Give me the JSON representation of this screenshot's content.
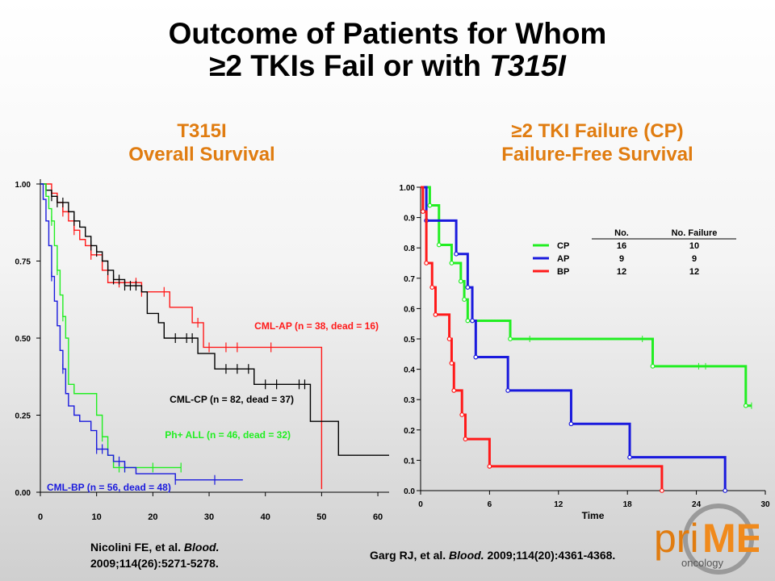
{
  "title_line1": "Outcome of Patients for Whom",
  "title_line2_main": "≥2 TKIs Fail or with ",
  "title_line2_italic": "T315I",
  "left_panel": {
    "heading_line1": "T315I",
    "heading_line2": "Overall Survival"
  },
  "right_panel": {
    "heading_line1": "≥2 TKI Failure (CP)",
    "heading_line2": "Failure-Free Survival"
  },
  "citations": {
    "left_prefix": "Nicolini FE, et al. ",
    "left_journal": "Blood.",
    "left_rest": "2009;114(26):5271-5278.",
    "right_prefix": "Garg RJ, et al. ",
    "right_journal": "Blood.",
    "right_rest": " 2009;114(20):4361-4368."
  },
  "logo": {
    "text_pri": "pri",
    "text_me": "ME",
    "text_onc": "oncology"
  },
  "colors": {
    "accent": "#e07c10",
    "red": "#ff1a1a",
    "green": "#22ee22",
    "blue": "#1a1add",
    "black": "#000000"
  },
  "chart_data": [
    {
      "type": "line",
      "subtype": "kaplan-meier",
      "title": "T315I Overall Survival",
      "xlim": [
        0,
        62
      ],
      "ylim": [
        0,
        1
      ],
      "x_ticks": [
        0,
        10,
        20,
        30,
        40,
        50,
        60
      ],
      "y_ticks": [
        "0.00",
        "0.25",
        "0.50",
        "0.75",
        "1.00"
      ],
      "series": [
        {
          "name": "CML-AP (n = 38, dead = 16)",
          "color": "#ff1a1a",
          "x": [
            0,
            2,
            3,
            4,
            5,
            6,
            7,
            8,
            9,
            11,
            12,
            18,
            23,
            27,
            29,
            50,
            50
          ],
          "y": [
            1.0,
            0.97,
            0.94,
            0.91,
            0.88,
            0.85,
            0.82,
            0.8,
            0.77,
            0.72,
            0.68,
            0.65,
            0.6,
            0.55,
            0.47,
            0.47,
            0.01
          ],
          "censored_x": [
            4,
            6,
            9,
            14,
            17,
            18,
            22,
            28,
            30,
            33,
            35,
            41
          ]
        },
        {
          "name": "CML-CP (n = 82, dead = 37)",
          "color": "#000000",
          "x": [
            0,
            1,
            2,
            3,
            5,
            6,
            7,
            8,
            9,
            10,
            11,
            12,
            13,
            15,
            18,
            19,
            21,
            22,
            26,
            28,
            31,
            38,
            48,
            53,
            62
          ],
          "y": [
            1.0,
            0.98,
            0.96,
            0.94,
            0.91,
            0.88,
            0.86,
            0.83,
            0.8,
            0.78,
            0.75,
            0.72,
            0.69,
            0.67,
            0.65,
            0.58,
            0.55,
            0.5,
            0.5,
            0.45,
            0.4,
            0.35,
            0.23,
            0.12,
            0.12
          ],
          "censored_x": [
            1,
            2,
            3,
            4,
            6,
            9,
            10,
            12,
            13,
            14,
            15,
            16,
            17,
            24,
            26,
            27,
            33,
            35,
            37,
            40,
            42,
            46,
            47
          ]
        },
        {
          "name": "Ph+ ALL (n = 46, dead = 32)",
          "color": "#22ee22",
          "x": [
            0,
            1,
            1.5,
            2,
            2.5,
            3,
            3.5,
            4,
            4.5,
            5,
            6,
            10,
            11,
            12,
            13,
            25
          ],
          "y": [
            1.0,
            0.96,
            0.92,
            0.88,
            0.8,
            0.72,
            0.64,
            0.57,
            0.5,
            0.35,
            0.32,
            0.25,
            0.18,
            0.12,
            0.08,
            0.08
          ],
          "censored_x": [
            2,
            3,
            4,
            11,
            14,
            15,
            20,
            25
          ]
        },
        {
          "name": "CML-BP (n = 56, dead = 48)",
          "color": "#1a1add",
          "x": [
            0,
            0.5,
            1,
            1.5,
            2,
            2.5,
            3,
            3.5,
            4,
            4.5,
            5,
            6,
            7,
            9,
            10,
            12,
            13,
            15,
            17,
            24,
            36
          ],
          "y": [
            1.0,
            0.95,
            0.88,
            0.8,
            0.7,
            0.62,
            0.54,
            0.46,
            0.4,
            0.32,
            0.28,
            0.25,
            0.23,
            0.2,
            0.14,
            0.12,
            0.1,
            0.08,
            0.06,
            0.04,
            0.04
          ],
          "censored_x": [
            2,
            4,
            10,
            11,
            14,
            15,
            24,
            31
          ]
        }
      ],
      "annotations": [
        {
          "text": "CML-AP (n = 38, dead = 16)",
          "color": "#ff1a1a"
        },
        {
          "text": "CML-CP (n = 82, dead = 37)",
          "color": "#000000"
        },
        {
          "text": "Ph+ ALL  (n = 46, dead = 32)",
          "color": "#22ee22"
        },
        {
          "text": "CML-BP (n = 56, dead = 48)",
          "color": "#1a1add"
        }
      ]
    },
    {
      "type": "line",
      "subtype": "kaplan-meier",
      "title": "≥2 TKI Failure (CP) Failure-Free Survival",
      "xlabel": "Time",
      "xlim": [
        0,
        30
      ],
      "ylim": [
        0,
        1
      ],
      "x_ticks": [
        0,
        6,
        12,
        18,
        24,
        30
      ],
      "y_ticks": [
        "0.0",
        "0.1",
        "0.2",
        "0.3",
        "0.4",
        "0.5",
        "0.6",
        "0.7",
        "0.8",
        "0.9",
        "1.00"
      ],
      "legend_table": {
        "headers": [
          "No.",
          "No. Failure"
        ],
        "rows": [
          {
            "label": "CP",
            "no": "16",
            "failure": "10",
            "color": "#22ee22"
          },
          {
            "label": "AP",
            "no": "9",
            "failure": "9",
            "color": "#1a1add"
          },
          {
            "label": "BP",
            "no": "12",
            "failure": "12",
            "color": "#ff1a1a"
          }
        ]
      },
      "series": [
        {
          "name": "CP",
          "color": "#22ee22",
          "x": [
            0,
            0.8,
            1.6,
            2.7,
            3.5,
            3.8,
            4.1,
            7.8,
            20.2,
            28.3,
            28.8
          ],
          "y": [
            1.0,
            0.94,
            0.81,
            0.75,
            0.69,
            0.63,
            0.56,
            0.5,
            0.41,
            0.28,
            0.28
          ],
          "censored_x": [
            9.5,
            19.3,
            24.2,
            24.8,
            28.8
          ]
        },
        {
          "name": "AP",
          "color": "#1a1add",
          "x": [
            0,
            0.5,
            1.3,
            3.1,
            4.1,
            4.5,
            4.8,
            7.6,
            13.1,
            18.2,
            26.5
          ],
          "y": [
            1.0,
            0.89,
            0.89,
            0.78,
            0.67,
            0.56,
            0.44,
            0.33,
            0.22,
            0.11,
            0.0
          ],
          "censored_x": []
        },
        {
          "name": "BP",
          "color": "#ff1a1a",
          "x": [
            0,
            0.2,
            0.5,
            1.0,
            1.3,
            2.5,
            2.7,
            2.9,
            3.6,
            3.9,
            6.0,
            21.0
          ],
          "y": [
            1.0,
            0.92,
            0.75,
            0.67,
            0.58,
            0.5,
            0.42,
            0.33,
            0.25,
            0.17,
            0.08,
            0.0
          ],
          "censored_x": []
        }
      ]
    }
  ]
}
